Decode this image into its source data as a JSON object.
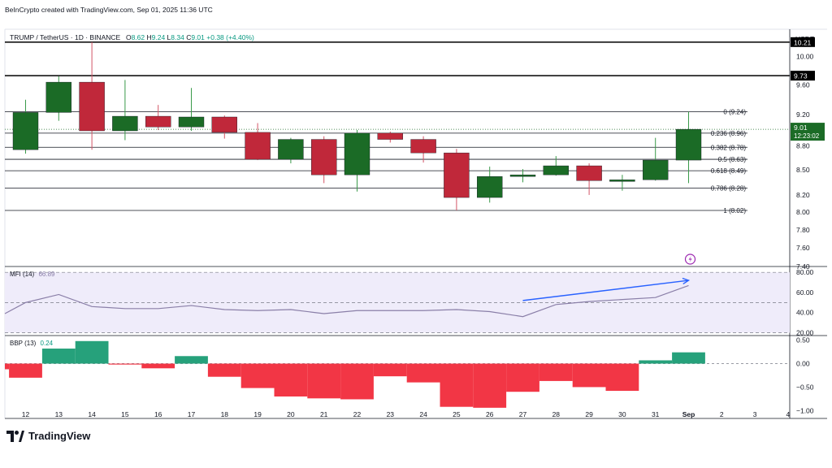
{
  "header": {
    "credit": "BeInCrypto created with TradingView.com, Sep 01, 2025 11:36 UTC",
    "symbol": "TRUMP / TetherUS · 1D · BINANCE",
    "open_label": "O",
    "open": "8.62",
    "high_label": "H",
    "high": "9.24",
    "low_label": "L",
    "low": "8.34",
    "close_label": "C",
    "close": "9.01",
    "change": "+0.38 (+4.40%)",
    "currency": "USDT"
  },
  "brand": {
    "name": "TradingView"
  },
  "colors": {
    "up": "#1b6b26",
    "down": "#c0283a",
    "accent": "#089981",
    "mfi_line": "#8a7fa8",
    "trend_arrow": "#2962ff",
    "mfi_fill": "#efecfa",
    "bbp_up": "#26a17b",
    "bbp_down": "#f23645"
  },
  "chart_data": [
    {
      "type": "candlestick",
      "title": "TRUMP / TetherUS · 1D · BINANCE",
      "x": [
        "12",
        "13",
        "14",
        "15",
        "16",
        "17",
        "18",
        "19",
        "20",
        "21",
        "22",
        "23",
        "24",
        "25",
        "26",
        "27",
        "28",
        "29",
        "30",
        "31",
        "Sep"
      ],
      "ohlc": [
        [
          8.75,
          9.4,
          8.7,
          9.23
        ],
        [
          9.23,
          9.72,
          9.12,
          9.64
        ],
        [
          9.64,
          10.21,
          8.75,
          8.99
        ],
        [
          8.99,
          9.67,
          8.87,
          9.18
        ],
        [
          9.18,
          9.33,
          9.0,
          9.04
        ],
        [
          9.04,
          9.56,
          8.99,
          9.17
        ],
        [
          9.17,
          9.19,
          8.89,
          8.97
        ],
        [
          8.97,
          9.09,
          8.62,
          8.63
        ],
        [
          8.63,
          8.9,
          8.58,
          8.88
        ],
        [
          8.88,
          8.92,
          8.34,
          8.44
        ],
        [
          8.44,
          9.0,
          8.24,
          8.96
        ],
        [
          8.96,
          8.98,
          8.84,
          8.88
        ],
        [
          8.88,
          8.92,
          8.59,
          8.71
        ],
        [
          8.71,
          8.76,
          8.02,
          8.17
        ],
        [
          8.17,
          8.54,
          8.11,
          8.42
        ],
        [
          8.42,
          8.51,
          8.35,
          8.44
        ],
        [
          8.44,
          8.67,
          8.43,
          8.55
        ],
        [
          8.55,
          8.58,
          8.2,
          8.37
        ],
        [
          8.36,
          8.44,
          8.25,
          8.38
        ],
        [
          8.38,
          8.9,
          8.37,
          8.62
        ],
        [
          8.62,
          9.24,
          8.34,
          9.01
        ]
      ],
      "x_axis_ticks": [
        "12",
        "13",
        "14",
        "15",
        "16",
        "17",
        "18",
        "19",
        "20",
        "21",
        "22",
        "23",
        "24",
        "25",
        "26",
        "27",
        "28",
        "29",
        "30",
        "31",
        "Sep",
        "2",
        "3",
        "4"
      ],
      "y_axis_ticks": [
        "10.00",
        "9.60",
        "9.20",
        "8.80",
        "8.50",
        "8.20",
        "8.00",
        "7.80",
        "7.60",
        "7.40"
      ],
      "y_scale": "log",
      "ylim": [
        7.4,
        10.4
      ],
      "price_lines": [
        {
          "price": 10.21,
          "label": "10.21"
        },
        {
          "price": 9.73,
          "label": "9.73"
        }
      ],
      "fibonacci": [
        {
          "level": "0",
          "price": 9.24,
          "label": "0 (9.24)"
        },
        {
          "level": "0.236",
          "price": 8.96,
          "label": "0.236 (8.96)"
        },
        {
          "level": "0.382",
          "price": 8.78,
          "label": "0.382 (8.78)"
        },
        {
          "level": "0.5",
          "price": 8.63,
          "label": "0.5 (8.63)"
        },
        {
          "level": "0.618",
          "price": 8.49,
          "label": "0.618 (8.49)"
        },
        {
          "level": "0.786",
          "price": 8.28,
          "label": "0.786 (8.28)"
        },
        {
          "level": "1",
          "price": 8.02,
          "label": "1 (8.02)"
        }
      ],
      "last_price": {
        "value": "9.01",
        "countdown": "12:23:02"
      }
    },
    {
      "type": "line",
      "title": "MFI (14)",
      "name": "MFI",
      "period": "14",
      "last_value": "66.89",
      "x": [
        "11",
        "12",
        "13",
        "14",
        "15",
        "16",
        "17",
        "18",
        "19",
        "20",
        "21",
        "22",
        "23",
        "24",
        "25",
        "26",
        "27",
        "28",
        "29",
        "30",
        "31",
        "Sep"
      ],
      "values": [
        39,
        50,
        58,
        46,
        44,
        44,
        47,
        43,
        42,
        43,
        39,
        42,
        42,
        42,
        43,
        41,
        36,
        48,
        51,
        53,
        55,
        66.89
      ],
      "ylim": [
        18,
        85
      ],
      "y_axis_ticks": [
        "80.00",
        "60.00",
        "40.00",
        "20.00"
      ],
      "bands": [
        80,
        50,
        20
      ],
      "annotation": {
        "type": "arrow",
        "from": {
          "x": "27",
          "y": 52
        },
        "to": {
          "x": "Sep",
          "y": 72
        }
      }
    },
    {
      "type": "bar",
      "title": "BBP (13)",
      "name": "BBP",
      "period": "13",
      "last_value": "0.24",
      "x": [
        "11",
        "12",
        "13",
        "14",
        "15",
        "16",
        "17",
        "18",
        "19",
        "20",
        "21",
        "22",
        "23",
        "24",
        "25",
        "26",
        "27",
        "28",
        "29",
        "30",
        "31",
        "Sep"
      ],
      "values": [
        -0.12,
        -0.3,
        0.32,
        0.48,
        -0.02,
        -0.1,
        0.16,
        -0.28,
        -0.52,
        -0.7,
        -0.74,
        -0.76,
        -0.27,
        -0.4,
        -0.92,
        -0.94,
        -0.6,
        -0.37,
        -0.5,
        -0.58,
        0.07,
        0.24
      ],
      "ylim": [
        -1.15,
        0.58
      ],
      "y_axis_ticks": [
        "0.50",
        "0.00",
        "−0.50",
        "−1.00"
      ]
    }
  ]
}
